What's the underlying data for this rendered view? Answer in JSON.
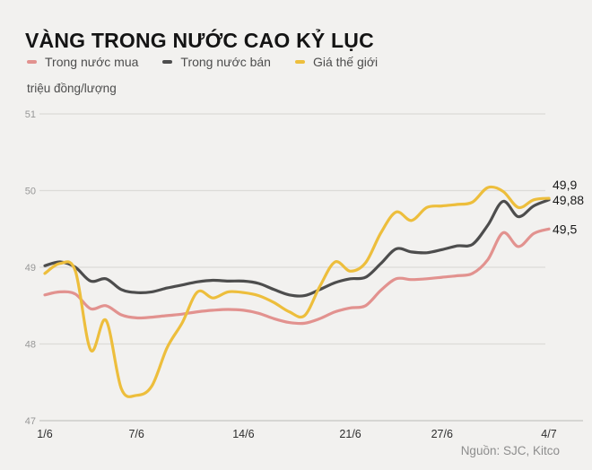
{
  "title": "VÀNG TRONG NƯỚC CAO KỶ LỤC",
  "unit_label": "triệu đồng/lượng",
  "source": "Nguồn: SJC, Kitco",
  "colors": {
    "background": "#f2f1ef",
    "grid": "#dcdbd8",
    "axis": "#c6c5c2",
    "y_tick_text": "#979797",
    "x_tick_text": "#2e2e2e",
    "end_label_text": "#1a1a1a"
  },
  "chart_data": {
    "type": "line",
    "title": "VÀNG TRONG NƯỚC CAO KỶ LỤC",
    "ylabel": "triệu đồng/lượng",
    "ylim": [
      47,
      51
    ],
    "y_ticks": [
      51,
      50,
      49,
      48,
      47
    ],
    "grid": "horizontal",
    "legend_position": "top",
    "n_points": 34,
    "x_ticks": [
      {
        "label": "1/6",
        "index": 0
      },
      {
        "label": "7/6",
        "index": 6
      },
      {
        "label": "14/6",
        "index": 13
      },
      {
        "label": "21/6",
        "index": 20
      },
      {
        "label": "27/6",
        "index": 26
      },
      {
        "label": "4/7",
        "index": 33
      }
    ],
    "series": [
      {
        "id": "domestic-buy",
        "name": "Trong nước mua",
        "color": "#e2928f",
        "end_label": "49,5",
        "values": [
          48.64,
          48.68,
          48.65,
          48.46,
          48.5,
          48.38,
          48.34,
          48.35,
          48.37,
          48.39,
          48.42,
          48.44,
          48.45,
          48.44,
          48.4,
          48.33,
          48.28,
          48.27,
          48.33,
          48.42,
          48.47,
          48.5,
          48.7,
          48.85,
          48.84,
          48.85,
          48.87,
          48.89,
          48.92,
          49.1,
          49.45,
          49.27,
          49.44,
          49.5
        ]
      },
      {
        "id": "domestic-sell",
        "name": "Trong nước bán",
        "color": "#4d4d4d",
        "end_label": "49,88",
        "values": [
          49.02,
          49.07,
          49.0,
          48.82,
          48.85,
          48.71,
          48.67,
          48.68,
          48.73,
          48.77,
          48.81,
          48.83,
          48.82,
          48.82,
          48.79,
          48.71,
          48.64,
          48.63,
          48.71,
          48.8,
          48.85,
          48.87,
          49.05,
          49.24,
          49.2,
          49.19,
          49.23,
          49.28,
          49.3,
          49.55,
          49.86,
          49.66,
          49.8,
          49.88
        ]
      },
      {
        "id": "world-price",
        "name": "Giá thế giới",
        "color": "#edbe3c",
        "end_label": "49,9",
        "values": [
          48.92,
          49.05,
          48.95,
          47.92,
          48.31,
          47.42,
          47.33,
          47.45,
          47.95,
          48.28,
          48.68,
          48.6,
          48.68,
          48.67,
          48.63,
          48.54,
          48.42,
          48.37,
          48.75,
          49.07,
          48.95,
          49.06,
          49.45,
          49.72,
          49.61,
          49.78,
          49.8,
          49.82,
          49.85,
          50.04,
          49.99,
          49.78,
          49.88,
          49.9
        ]
      }
    ]
  }
}
